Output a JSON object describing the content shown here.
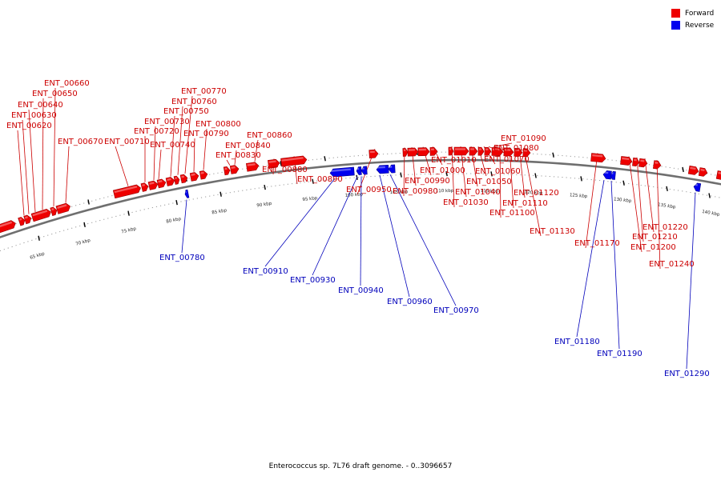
{
  "caption": "Enterococcus sp. 7L76 draft genome. - 0..3096657",
  "legend": [
    {
      "label": "Forward",
      "color": "#ee0000"
    },
    {
      "label": "Reverse",
      "color": "#0000ee"
    }
  ],
  "colors": {
    "forward": "#ee0000",
    "reverse": "#0000ee",
    "forward_label": "#cc0000",
    "reverse_label": "#0000bb",
    "backbone": "#777777"
  },
  "axis_ticks": [
    "65 kbp",
    "70 kbp",
    "75 kbp",
    "80 kbp",
    "85 kbp",
    "90 kbp",
    "95 kbp",
    "100 kbp",
    "105 kbp",
    "110 kbp",
    "115 kbp",
    "120 kbp",
    "125 kbp",
    "130 kbp",
    "135 kbp",
    "140 kbp"
  ],
  "forward_genes": [
    "ENT_00620",
    "ENT_00630",
    "ENT_00640",
    "ENT_00650",
    "ENT_00660",
    "ENT_00670",
    "ENT_00710",
    "ENT_00720",
    "ENT_00730",
    "ENT_00740",
    "ENT_00750",
    "ENT_00760",
    "ENT_00770",
    "ENT_00790",
    "ENT_00800",
    "ENT_00830",
    "ENT_00840",
    "ENT_00860",
    "ENT_00880",
    "ENT_00890",
    "ENT_00950",
    "ENT_00980",
    "ENT_00990",
    "ENT_01000",
    "ENT_01010",
    "ENT_01030",
    "ENT_01040",
    "ENT_01050",
    "ENT_01060",
    "ENT_01070",
    "ENT_01080",
    "ENT_01090",
    "ENT_01100",
    "ENT_01110",
    "ENT_01120",
    "ENT_01130",
    "ENT_01170",
    "ENT_01200",
    "ENT_01210",
    "ENT_01220",
    "ENT_01240"
  ],
  "reverse_genes": [
    "ENT_00780",
    "ENT_00910",
    "ENT_00930",
    "ENT_00940",
    "ENT_00960",
    "ENT_00970",
    "ENT_01180",
    "ENT_01190",
    "ENT_01290"
  ]
}
